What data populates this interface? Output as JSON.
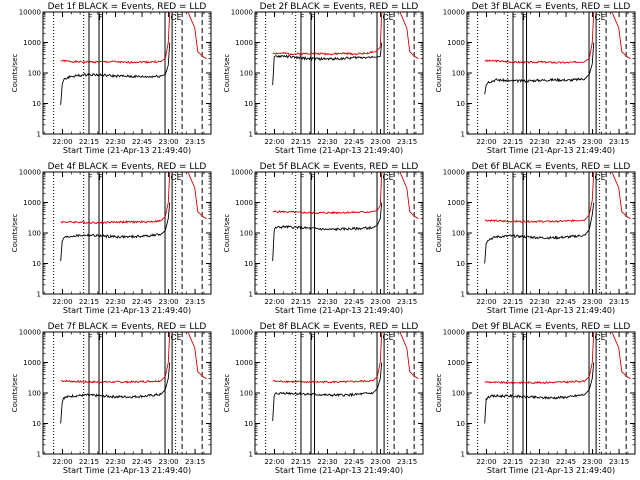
{
  "chart_data": {
    "type": "line",
    "xlabel": "Start Time (21-Apr-13 21:49:40)",
    "ylabel": "Counts/sec",
    "x_tick_labels": [
      "22:00",
      "22:15",
      "22:30",
      "22:45",
      "23:00",
      "23:15"
    ],
    "x_tick_values": [
      660,
      1560,
      2460,
      3360,
      4260,
      5160
    ],
    "xlim": [
      0,
      5700
    ],
    "y_scale": "log",
    "ylim": [
      1,
      10000
    ],
    "y_tick_labels": [
      "1",
      "10",
      "100",
      "1000",
      "10000"
    ],
    "y_tick_values": [
      1,
      10,
      100,
      1000,
      10000
    ],
    "markers": [
      "F",
      "F",
      "C",
      "E"
    ],
    "series_colors": {
      "events": "#000000",
      "lld": "#d40000"
    },
    "dotted_lines": [
      360,
      1380,
      4500
    ],
    "solid_lines": [
      1560,
      1900,
      2020,
      4140,
      4380
    ],
    "dashed_lines": [
      4720,
      5400
    ],
    "panels": [
      {
        "title": "Det 1f BLACK = Events, RED = LLD",
        "x": [
          600,
          650,
          700,
          900,
          1200,
          1600,
          2000,
          2400,
          2800,
          3200,
          3600,
          4000,
          4150,
          4250,
          4300
        ],
        "events": [
          9,
          40,
          60,
          75,
          82,
          90,
          85,
          80,
          78,
          76,
          75,
          80,
          90,
          180,
          1000
        ],
        "lld": [
          250,
          250,
          250,
          240,
          230,
          230,
          230,
          235,
          220,
          230,
          230,
          235,
          300,
          1000,
          10000
        ]
      },
      {
        "title": "Det 2f BLACK = Events, RED = LLD",
        "x": [
          600,
          650,
          700,
          1000,
          1400,
          1800,
          2200,
          2600,
          3000,
          3400,
          3800,
          4100,
          4250,
          4300
        ],
        "events": [
          40,
          300,
          350,
          360,
          320,
          300,
          290,
          290,
          300,
          320,
          330,
          330,
          350,
          1000
        ],
        "lld": [
          450,
          450,
          440,
          440,
          420,
          440,
          430,
          420,
          440,
          420,
          450,
          500,
          700,
          10000
        ]
      },
      {
        "title": "Det 3f BLACK = Events, RED = LLD",
        "x": [
          600,
          650,
          700,
          1000,
          1500,
          2000,
          2500,
          3000,
          3500,
          4000,
          4150,
          4250,
          4300
        ],
        "events": [
          20,
          40,
          50,
          60,
          55,
          55,
          58,
          60,
          58,
          65,
          90,
          200,
          1000
        ],
        "lld": [
          250,
          250,
          250,
          250,
          230,
          220,
          230,
          220,
          220,
          240,
          300,
          1000,
          10000
        ]
      },
      {
        "title": "Det 4f BLACK = Events, RED = LLD",
        "x": [
          600,
          650,
          700,
          1000,
          1500,
          2000,
          2500,
          3000,
          3500,
          4000,
          4150,
          4250,
          4300
        ],
        "events": [
          12,
          50,
          70,
          80,
          85,
          80,
          75,
          75,
          80,
          90,
          120,
          300,
          1000
        ],
        "lld": [
          230,
          230,
          230,
          230,
          220,
          220,
          230,
          230,
          230,
          250,
          350,
          1000,
          10000
        ]
      },
      {
        "title": "Det 5f BLACK = Events, RED = LLD",
        "x": [
          600,
          650,
          700,
          1000,
          1500,
          2000,
          2500,
          3000,
          3500,
          4000,
          4150,
          4250,
          4300
        ],
        "events": [
          12,
          120,
          150,
          160,
          150,
          140,
          130,
          135,
          140,
          150,
          180,
          300,
          1000
        ],
        "lld": [
          500,
          500,
          500,
          500,
          470,
          460,
          460,
          470,
          480,
          500,
          550,
          800,
          10000
        ]
      },
      {
        "title": "Det 6f BLACK = Events, RED = LLD",
        "x": [
          600,
          650,
          700,
          1000,
          1500,
          2000,
          2500,
          3000,
          3500,
          4000,
          4150,
          4250,
          4300
        ],
        "events": [
          10,
          45,
          60,
          75,
          80,
          75,
          70,
          70,
          75,
          85,
          130,
          400,
          1000
        ],
        "lld": [
          260,
          260,
          260,
          250,
          240,
          240,
          240,
          240,
          250,
          270,
          400,
          1200,
          10000
        ]
      },
      {
        "title": "Det 7f BLACK = Events, RED = LLD",
        "x": [
          600,
          650,
          700,
          1000,
          1500,
          2000,
          2500,
          3000,
          3500,
          4000,
          4150,
          4250,
          4300
        ],
        "events": [
          10,
          50,
          70,
          80,
          85,
          80,
          75,
          75,
          80,
          90,
          130,
          300,
          1000
        ],
        "lld": [
          250,
          250,
          250,
          240,
          230,
          230,
          230,
          230,
          240,
          250,
          350,
          1000,
          10000
        ]
      },
      {
        "title": "Det 8f BLACK = Events, RED = LLD",
        "x": [
          600,
          650,
          700,
          1000,
          1500,
          2000,
          2500,
          3000,
          3500,
          4000,
          4150,
          4250,
          4300
        ],
        "events": [
          12,
          80,
          95,
          100,
          95,
          90,
          85,
          85,
          90,
          100,
          140,
          300,
          1000
        ],
        "lld": [
          250,
          250,
          240,
          240,
          230,
          230,
          230,
          230,
          240,
          250,
          350,
          1000,
          10000
        ]
      },
      {
        "title": "Det 9f BLACK = Events, RED = LLD",
        "x": [
          600,
          650,
          700,
          1000,
          1500,
          2000,
          2500,
          3000,
          3500,
          4000,
          4150,
          4250,
          4300
        ],
        "events": [
          10,
          60,
          75,
          80,
          80,
          75,
          70,
          70,
          75,
          90,
          130,
          300,
          1000
        ],
        "lld": [
          230,
          230,
          230,
          220,
          220,
          220,
          220,
          225,
          230,
          250,
          350,
          1000,
          10000
        ]
      }
    ]
  }
}
